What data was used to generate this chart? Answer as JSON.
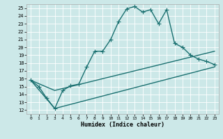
{
  "xlabel": "Humidex (Indice chaleur)",
  "bg_color": "#cce8e8",
  "line_color": "#1a7070",
  "grid_color": "#ffffff",
  "xlim": [
    -0.5,
    23.5
  ],
  "ylim": [
    11.5,
    25.5
  ],
  "xticks": [
    0,
    1,
    2,
    3,
    4,
    5,
    6,
    7,
    8,
    9,
    10,
    11,
    12,
    13,
    14,
    15,
    16,
    17,
    18,
    19,
    20,
    21,
    22,
    23
  ],
  "yticks": [
    12,
    13,
    14,
    15,
    16,
    17,
    18,
    19,
    20,
    21,
    22,
    23,
    24,
    25
  ],
  "line1_x": [
    0,
    1,
    2,
    3,
    4,
    5,
    6,
    7,
    8,
    9,
    10,
    11,
    12,
    13,
    14,
    15,
    16,
    17,
    18,
    19,
    20,
    21,
    22,
    23
  ],
  "line1_y": [
    15.8,
    15.0,
    13.5,
    12.2,
    14.5,
    15.1,
    15.3,
    17.5,
    19.5,
    19.5,
    21.0,
    23.3,
    24.9,
    25.2,
    24.5,
    24.8,
    23.0,
    24.8,
    20.5,
    20.0,
    19.0,
    18.5,
    18.2,
    17.8
  ],
  "line2_x": [
    0,
    3,
    23
  ],
  "line2_y": [
    15.8,
    14.5,
    19.5
  ],
  "line3_x": [
    0,
    3,
    23
  ],
  "line3_y": [
    15.8,
    12.2,
    17.5
  ],
  "marker": "+",
  "markersize": 4,
  "linewidth": 1.0
}
